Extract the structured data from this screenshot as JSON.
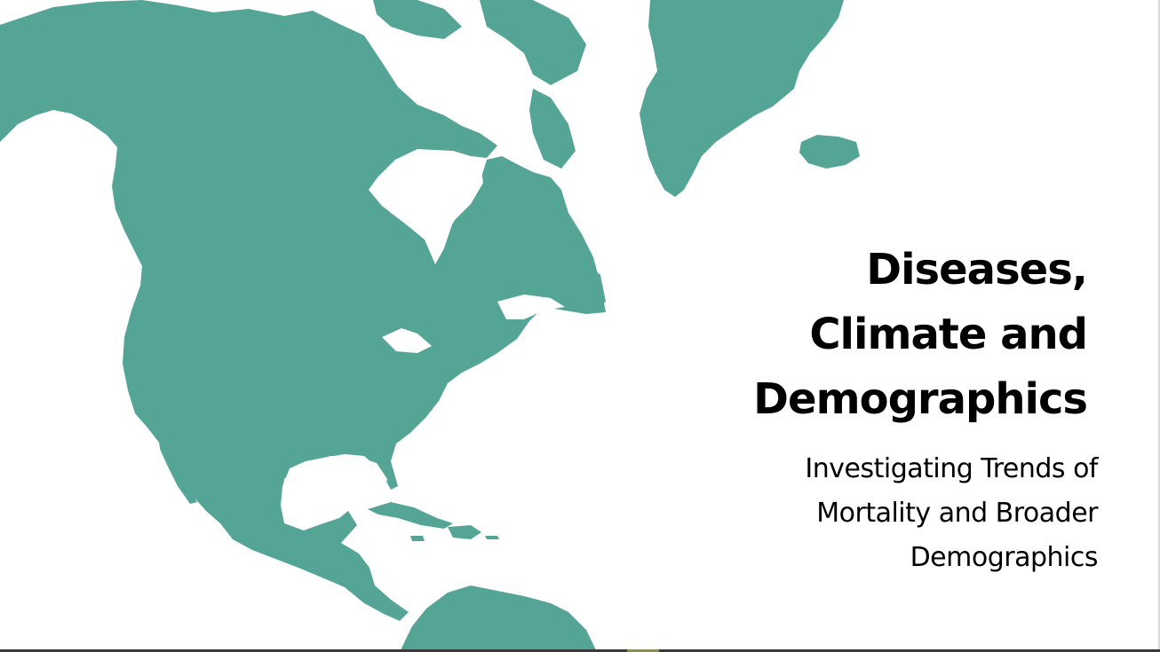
{
  "slide": {
    "title_lines": [
      "Diseases,",
      "Climate and",
      "Demographics"
    ],
    "subtitle_lines": [
      "Investigating Trends of",
      "Mortality and Broader",
      "Demographics"
    ]
  },
  "colors": {
    "land": "#55a597",
    "background": "#ffffff",
    "text": "#000000"
  },
  "map": {
    "region": "north-america-map"
  }
}
